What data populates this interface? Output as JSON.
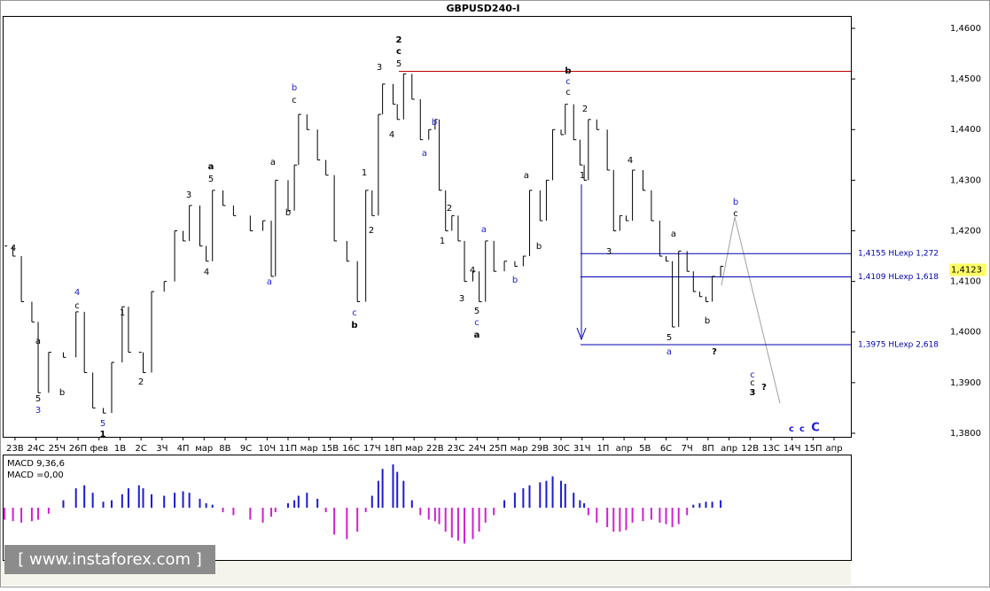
{
  "chart_data": [
    {
      "type": "stock",
      "title": "GBPUSD240-I",
      "categories": [
        "23В",
        "24С",
        "25Ч",
        "26П",
        "фев",
        "1В",
        "2С",
        "3Ч",
        "4П",
        "мар",
        "8В",
        "9С",
        "10Ч",
        "11П",
        "мар",
        "15В",
        "16С",
        "17Ч",
        "18П",
        "мар",
        "22В",
        "23С",
        "24Ч",
        "25П",
        "мар",
        "29В",
        "30С",
        "31Ч",
        "1П",
        "апр",
        "5В",
        "6С",
        "7Ч",
        "8П",
        "апр",
        "12В",
        "13С",
        "14Ч",
        "15П",
        "апр"
      ],
      "xlim": [
        -0.59,
        39.8
      ],
      "x": [
        -0.5,
        -0.1,
        0.3,
        0.8,
        1.1,
        1.6,
        2.3,
        2.9,
        3.3,
        3.7,
        4.2,
        4.6,
        5.1,
        5.4,
        5.9,
        6.1,
        6.5,
        7.1,
        7.6,
        8.0,
        8.3,
        8.8,
        9.1,
        9.4,
        9.9,
        10.4,
        11.2,
        11.8,
        12.2,
        12.4,
        13.0,
        13.3,
        13.5,
        13.9,
        14.4,
        14.8,
        15.2,
        15.8,
        16.3,
        16.7,
        17.0,
        17.3,
        17.5,
        18.0,
        18.2,
        18.5,
        18.9,
        19.3,
        19.7,
        20.0,
        20.2,
        20.5,
        20.8,
        21.1,
        21.4,
        21.8,
        22.1,
        22.4,
        22.8,
        23.3,
        23.8,
        24.2,
        24.5,
        25.0,
        25.3,
        25.6,
        26.0,
        26.2,
        26.6,
        26.9,
        27.1,
        27.3,
        27.7,
        28.2,
        28.5,
        28.8,
        29.1,
        29.4,
        29.9,
        30.3,
        30.7,
        31.0,
        31.3,
        31.6,
        32.0,
        32.3,
        32.6,
        32.9,
        33.2,
        33.6
      ],
      "values": [
        1.417,
        1.415,
        1.406,
        1.402,
        1.388,
        1.396,
        1.395,
        1.404,
        1.392,
        1.385,
        1.384,
        1.394,
        1.405,
        1.396,
        1.396,
        1.392,
        1.408,
        1.41,
        1.42,
        1.418,
        1.425,
        1.417,
        1.414,
        1.428,
        1.425,
        1.423,
        1.42,
        1.422,
        1.411,
        1.43,
        1.424,
        1.433,
        1.443,
        1.44,
        1.434,
        1.431,
        1.418,
        1.414,
        1.406,
        1.428,
        1.423,
        1.443,
        1.449,
        1.445,
        1.442,
        1.451,
        1.446,
        1.438,
        1.44,
        1.442,
        1.428,
        1.42,
        1.423,
        1.418,
        1.41,
        1.412,
        1.406,
        1.418,
        1.412,
        1.414,
        1.413,
        1.415,
        1.428,
        1.422,
        1.43,
        1.44,
        1.439,
        1.445,
        1.438,
        1.433,
        1.43,
        1.442,
        1.44,
        1.432,
        1.42,
        1.423,
        1.422,
        1.432,
        1.428,
        1.422,
        1.415,
        1.414,
        1.401,
        1.416,
        1.412,
        1.408,
        1.407,
        1.406,
        1.411,
        1.413
      ],
      "color": "#000000",
      "ylim": [
        1.3793,
        1.46245
      ],
      "yticks": [
        {
          "value": 1.38,
          "label": "1,3800"
        },
        {
          "value": 1.39,
          "label": "1,3900"
        },
        {
          "value": 1.4,
          "label": "1,4000"
        },
        {
          "value": 1.41,
          "label": "1,4100"
        },
        {
          "value": 1.42,
          "label": "1,4200"
        },
        {
          "value": 1.43,
          "label": "1,4300"
        },
        {
          "value": 1.44,
          "label": "1,4400"
        },
        {
          "value": 1.45,
          "label": "1,4500"
        },
        {
          "value": 1.46,
          "label": "1,4600"
        }
      ],
      "levels": [
        {
          "value": 1.4515,
          "color": "#c00000"
        },
        {
          "value": 1.4155,
          "label": "1,4155 HLexp 1,272",
          "color": "#0000b0"
        },
        {
          "value": 1.4109,
          "label": "1,4109 HLexp 1,618",
          "color": "#0000b0"
        },
        {
          "value": 1.3975,
          "label": "1,3975 HLexp 2,618",
          "color": "#0000b0"
        }
      ],
      "current_price": {
        "value": 1.4123,
        "label": "1,4123"
      },
      "annotations": [
        "4",
        "a",
        "5",
        "3",
        "b",
        "4",
        "c",
        "5",
        "1",
        "1",
        "2",
        "3",
        "4",
        "a",
        "5",
        "a",
        "a",
        "b",
        "b",
        "c",
        "c",
        "b",
        "1",
        "2",
        "3",
        "4",
        "2",
        "c",
        "5",
        "a",
        "b",
        "1",
        "2",
        "3",
        "4",
        "5",
        "c",
        "a",
        "a",
        "b",
        "a",
        "b",
        "b",
        "c",
        "c",
        "1",
        "2",
        "3",
        "4",
        "a",
        "5",
        "a",
        "b",
        "?",
        "b",
        "c",
        "c",
        "c",
        "3",
        "?",
        "c",
        "c",
        "C"
      ]
    },
    {
      "type": "bar",
      "title": "MACD 9,36,6",
      "subtitle": "MACD =0,00",
      "values": [
        -0.0008,
        -0.0009,
        -0.001,
        -0.0009,
        -0.0008,
        -0.0004,
        0.0005,
        0.0013,
        0.0015,
        0.001,
        0.0004,
        0.0005,
        0.0009,
        0.0013,
        0.0015,
        0.0013,
        0.0009,
        0.0008,
        0.001,
        0.0011,
        0.001,
        0.0006,
        0.0003,
        0.0002,
        -0.0003,
        -0.0005,
        -0.0008,
        -0.001,
        -0.0006,
        -0.0003,
        0.0003,
        0.0005,
        0.0008,
        0.001,
        0.0006,
        -0.0003,
        -0.0018,
        -0.0021,
        -0.0016,
        -0.0003,
        0.0008,
        0.0018,
        0.0026,
        0.0029,
        0.0024,
        0.0018,
        0.0005,
        -0.0005,
        -0.0008,
        -0.0009,
        -0.0011,
        -0.0016,
        -0.002,
        -0.0022,
        -0.0024,
        -0.0021,
        -0.0016,
        -0.001,
        -0.0005,
        0.0005,
        0.001,
        0.0013,
        0.0015,
        0.0017,
        0.0018,
        0.0021,
        0.0018,
        0.0016,
        0.001,
        0.0005,
        0.0003,
        -0.0005,
        -0.001,
        -0.0013,
        -0.0016,
        -0.0016,
        -0.0015,
        -0.001,
        -0.0009,
        -0.0008,
        -0.001,
        -0.0011,
        -0.0013,
        -0.0011,
        -0.0005,
        0.0002,
        0.0003,
        0.0004,
        0.0004,
        0.0005
      ],
      "colors": {
        "positive": "#1c1cd0",
        "negative": "#d020d0"
      },
      "ylim": [
        -0.0035,
        0.0035
      ]
    }
  ],
  "watermark": "[ www.instaforex.com ]"
}
